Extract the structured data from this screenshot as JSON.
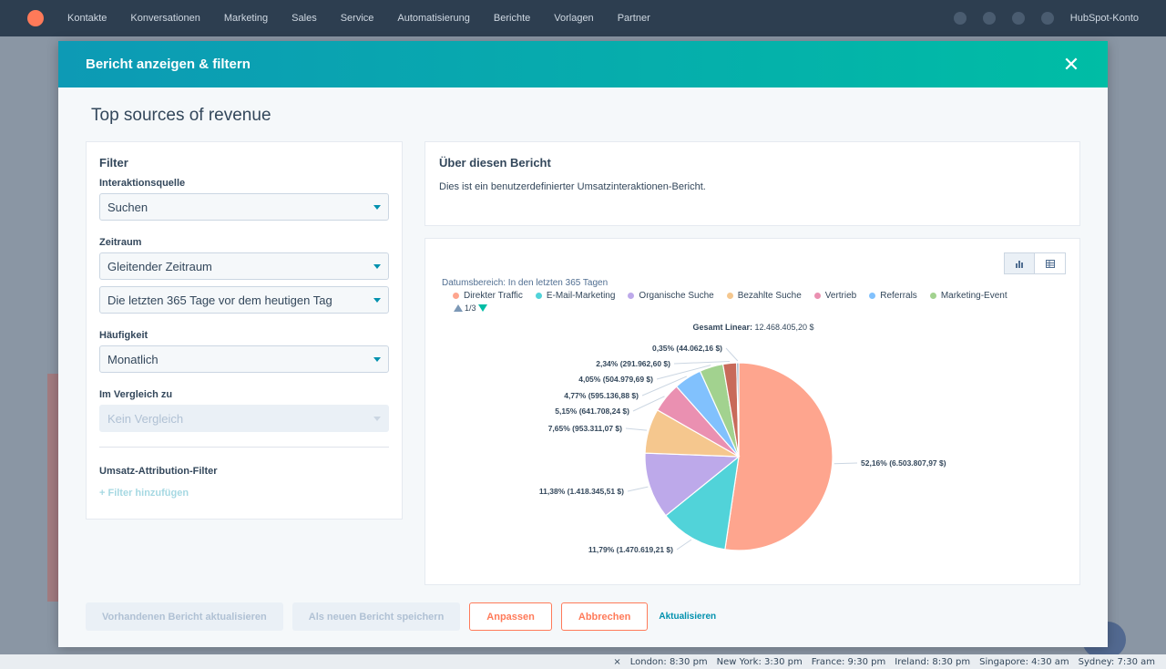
{
  "background_nav": {
    "items": [
      "Kontakte",
      "Konversationen",
      "Marketing",
      "Sales",
      "Service",
      "Automatisierung",
      "Berichte",
      "Vorlagen",
      "Partner"
    ],
    "account": "HubSpot-Konto"
  },
  "modal": {
    "title": "Bericht anzeigen & filtern",
    "report_title": "Top sources of revenue"
  },
  "filter": {
    "heading": "Filter",
    "source_label": "Interaktionsquelle",
    "source_value": "Suchen",
    "period_label": "Zeitraum",
    "period_value": "Gleitender Zeitraum",
    "range_value": "Die letzten 365 Tage vor dem heutigen Tag",
    "frequency_label": "Häufigkeit",
    "frequency_value": "Monatlich",
    "compare_label": "Im Vergleich zu",
    "compare_value": "Kein Vergleich",
    "attribution_label": "Umsatz-Attribution-Filter",
    "add_filter": "+ Filter hinzufügen"
  },
  "about": {
    "title": "Über diesen Bericht",
    "description": "Dies ist ein benutzerdefinierter Umsatzinteraktionen-Bericht."
  },
  "chart_panel": {
    "date_range": "Datumsbereich: In den letzten 365 Tagen",
    "pager": "1/3",
    "total_label": "Gesamt Linear:",
    "total_value": "12.468.405,20 $"
  },
  "chart_data": {
    "type": "pie",
    "legend": [
      {
        "name": "Direkter Traffic",
        "color": "#fea58e"
      },
      {
        "name": "E-Mail-Marketing",
        "color": "#51d3d9"
      },
      {
        "name": "Organische Suche",
        "color": "#bda9ea"
      },
      {
        "name": "Bezahlte Suche",
        "color": "#f5c78e"
      },
      {
        "name": "Vertrieb",
        "color": "#ea90b1"
      },
      {
        "name": "Referrals",
        "color": "#81c1fd"
      },
      {
        "name": "Marketing-Event",
        "color": "#a2d28f"
      }
    ],
    "slices": [
      {
        "value": 6503807.97,
        "percent": 52.16,
        "label": "52,16% (6.503.807,97 $)",
        "color": "#fea58e"
      },
      {
        "value": 1470619.21,
        "percent": 11.79,
        "label": "11,79% (1.470.619,21 $)",
        "color": "#51d3d9"
      },
      {
        "value": 1418345.51,
        "percent": 11.38,
        "label": "11,38% (1.418.345,51 $)",
        "color": "#bda9ea"
      },
      {
        "value": 953311.07,
        "percent": 7.65,
        "label": "7,65% (953.311,07 $)",
        "color": "#f5c78e"
      },
      {
        "value": 641708.24,
        "percent": 5.15,
        "label": "5,15% (641.708,24 $)",
        "color": "#ea90b1"
      },
      {
        "value": 595136.88,
        "percent": 4.77,
        "label": "4,77% (595.136,88 $)",
        "color": "#81c1fd"
      },
      {
        "value": 504979.69,
        "percent": 4.05,
        "label": "4,05% (504.979,69 $)",
        "color": "#a2d28f"
      },
      {
        "value": 291962.6,
        "percent": 2.34,
        "label": "2,34% (291.962,60 $)",
        "color": "#c86a5a"
      },
      {
        "value": 44062.16,
        "percent": 0.35,
        "label": "0,35% (44.062,16 $)",
        "color": "#7c98b6"
      }
    ]
  },
  "footer": {
    "update_existing": "Vorhandenen Bericht aktualisieren",
    "save_new": "Als neuen Bericht speichern",
    "customize": "Anpassen",
    "cancel": "Abbrechen",
    "refresh": "Aktualisieren"
  },
  "clocks": [
    "London: 8:30 pm",
    "New York: 3:30 pm",
    "France: 9:30 pm",
    "Ireland: 8:30 pm",
    "Singapore: 4:30 am",
    "Sydney: 7:30 am"
  ]
}
